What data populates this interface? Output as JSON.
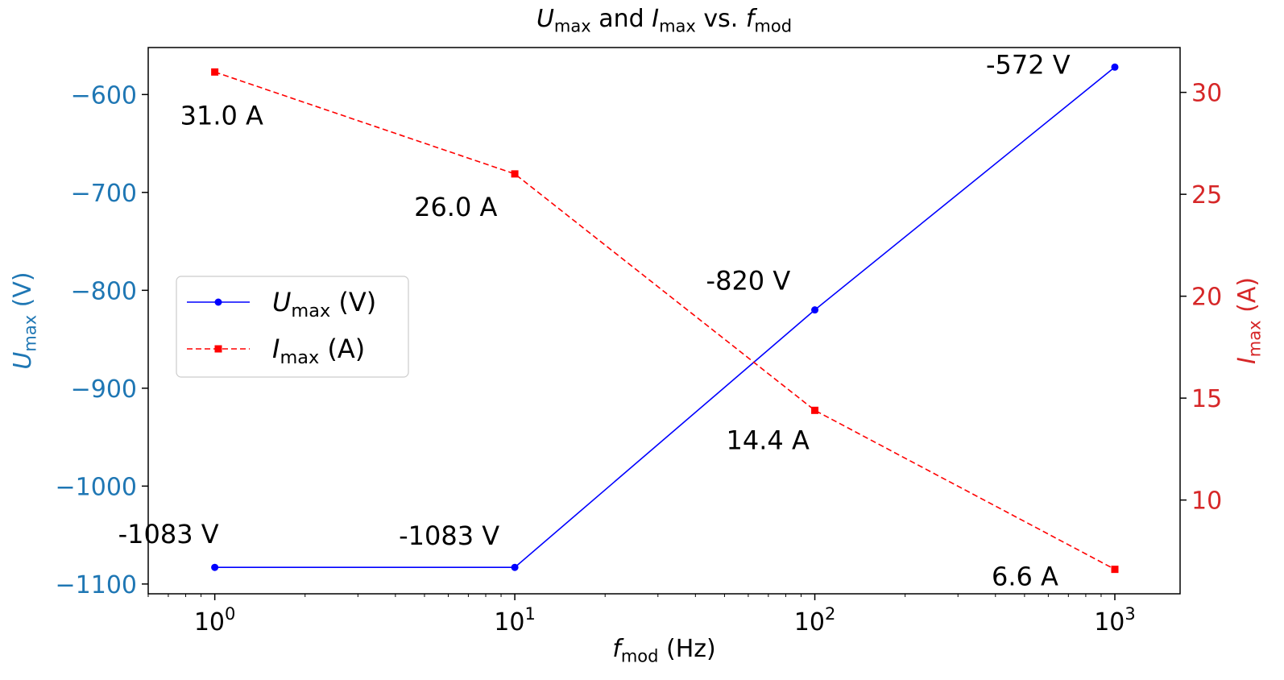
{
  "chart_data": {
    "type": "line",
    "title": {
      "parts": [
        {
          "t": "U",
          "i": true
        },
        {
          "t": "max",
          "sub": true
        },
        {
          "t": " and "
        },
        {
          "t": "I",
          "i": true
        },
        {
          "t": "max",
          "sub": true
        },
        {
          "t": " vs. "
        },
        {
          "t": "f",
          "i": true
        },
        {
          "t": "mod",
          "sub": true
        }
      ]
    },
    "xlabel": {
      "parts": [
        {
          "t": "f",
          "i": true
        },
        {
          "t": "mod",
          "sub": true
        },
        {
          "t": " (Hz)"
        }
      ]
    },
    "ylabel_left": {
      "parts": [
        {
          "t": "U",
          "i": true
        },
        {
          "t": "max",
          "sub": true
        },
        {
          "t": " (V)"
        }
      ]
    },
    "ylabel_right": {
      "parts": [
        {
          "t": "I",
          "i": true
        },
        {
          "t": "max",
          "sub": true
        },
        {
          "t": " (A)"
        }
      ]
    },
    "x_scale": "log",
    "x": [
      1,
      10,
      100,
      1000
    ],
    "xlim": [
      0.6,
      1650
    ],
    "x_ticks": [
      {
        "value": 1,
        "base": "10",
        "exp": "0"
      },
      {
        "value": 10,
        "base": "10",
        "exp": "1"
      },
      {
        "value": 100,
        "base": "10",
        "exp": "2"
      },
      {
        "value": 1000,
        "base": "10",
        "exp": "3"
      }
    ],
    "ylim_left": [
      -1110,
      -552
    ],
    "yticks_left": [
      {
        "value": -600,
        "label": "−600"
      },
      {
        "value": -700,
        "label": "−700"
      },
      {
        "value": -800,
        "label": "−800"
      },
      {
        "value": -900,
        "label": "−900"
      },
      {
        "value": -1000,
        "label": "−1000"
      },
      {
        "value": -1100,
        "label": "−1100"
      }
    ],
    "ylim_right": [
      5.4,
      32.2
    ],
    "yticks_right": [
      {
        "value": 10,
        "label": "10"
      },
      {
        "value": 15,
        "label": "15"
      },
      {
        "value": 20,
        "label": "20"
      },
      {
        "value": 25,
        "label": "25"
      },
      {
        "value": 30,
        "label": "30"
      }
    ],
    "series": [
      {
        "name": {
          "parts": [
            {
              "t": "U",
              "i": true
            },
            {
              "t": "max",
              "sub": true
            },
            {
              "t": " (V)"
            }
          ]
        },
        "axis": "left",
        "values": [
          -1083,
          -1083,
          -820,
          -572
        ],
        "labels": [
          "-1083 V",
          "-1083 V",
          "-820 V",
          "-572 V"
        ],
        "color": "#0000ff",
        "style": "solid",
        "marker": "circle"
      },
      {
        "name": {
          "parts": [
            {
              "t": "I",
              "i": true
            },
            {
              "t": "max",
              "sub": true
            },
            {
              "t": " (A)"
            }
          ]
        },
        "axis": "right",
        "values": [
          31.0,
          26.0,
          14.4,
          6.6
        ],
        "labels": [
          "31.0 A",
          "26.0 A",
          "14.4 A",
          "6.6 A"
        ],
        "color": "#ff0000",
        "style": "dashed",
        "marker": "square"
      }
    ],
    "legend_position": "center-left",
    "grid": false,
    "colors": {
      "left_axis": "#1f77b4",
      "right_axis": "#d62728",
      "text": "#000000"
    }
  }
}
